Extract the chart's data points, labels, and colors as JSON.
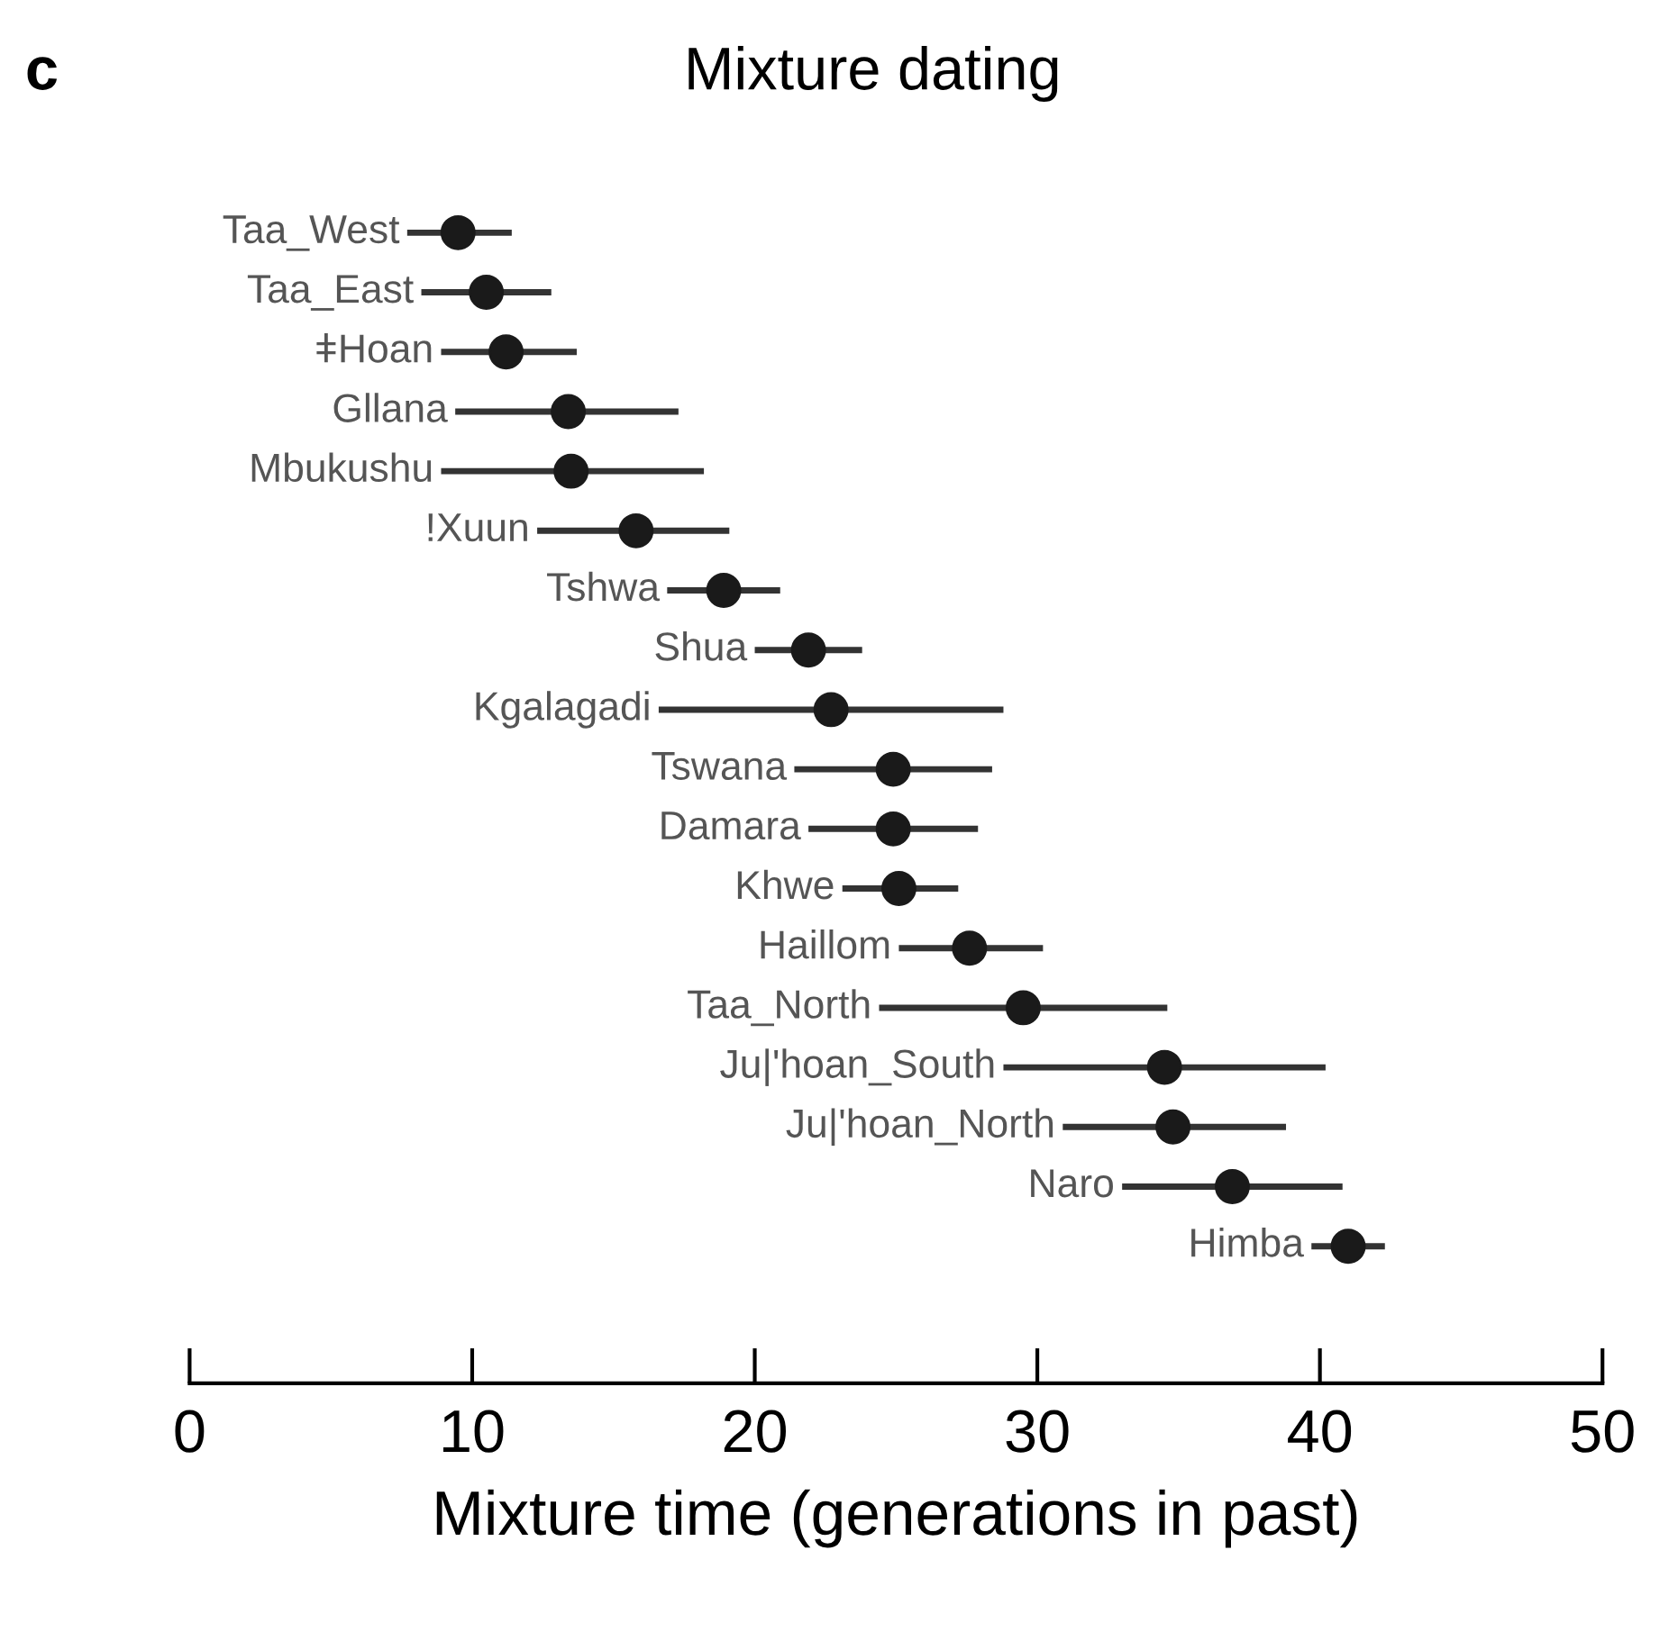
{
  "chart_data": {
    "type": "scatter",
    "orientation": "horizontal",
    "title": "Mixture dating",
    "xlabel": "Mixture time (generations in past)",
    "annotations": [
      "c"
    ],
    "categories": [
      "Taa_West",
      "Taa_East",
      "ǂHoan",
      "Gllana",
      "Mbukushu",
      "!Xuun",
      "Tshwa",
      "Shua",
      "Kgalagadi",
      "Tswana",
      "Damara",
      "Khwe",
      "Haillom",
      "Taa_North",
      "Ju|'hoan_South",
      "Ju|'hoan_North",
      "Naro",
      "Himba"
    ],
    "series": [
      {
        "color": "#1a1a1a",
        "values": [
          9.5,
          10.5,
          11.2,
          13.4,
          13.5,
          15.8,
          18.9,
          21.9,
          22.7,
          24.9,
          24.9,
          25.1,
          27.6,
          29.5,
          34.5,
          34.8,
          36.9,
          41.0
        ],
        "errors": [
          [
            7.7,
            11.4
          ],
          [
            8.2,
            12.8
          ],
          [
            8.9,
            13.7
          ],
          [
            9.4,
            17.3
          ],
          [
            8.9,
            18.2
          ],
          [
            12.3,
            19.1
          ],
          [
            16.9,
            20.9
          ],
          [
            20.0,
            23.8
          ],
          [
            16.6,
            28.8
          ],
          [
            21.4,
            28.4
          ],
          [
            21.9,
            27.9
          ],
          [
            23.1,
            27.2
          ],
          [
            25.1,
            30.2
          ],
          [
            24.4,
            34.6
          ],
          [
            28.8,
            40.2
          ],
          [
            30.9,
            38.8
          ],
          [
            33.0,
            40.8
          ],
          [
            39.7,
            42.3
          ]
        ]
      }
    ],
    "xlim": [
      0,
      50
    ],
    "xticks": [
      0,
      10,
      20,
      30,
      40,
      50
    ],
    "marker": "circle",
    "grid": false,
    "legend": false
  }
}
